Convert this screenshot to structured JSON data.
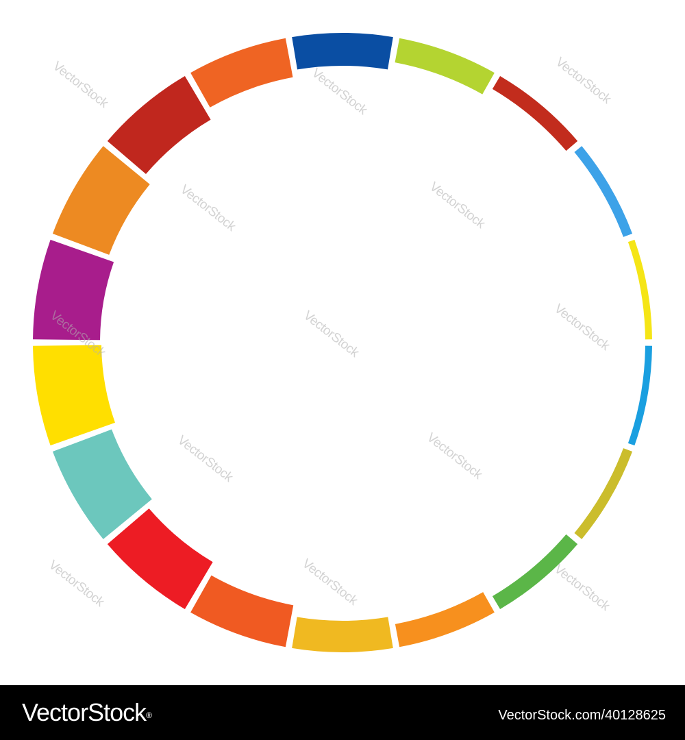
{
  "image": {
    "subject": "segmented-rainbow-ring",
    "background": "#ffffff",
    "segment_colors": [
      "#0a4ea3",
      "#b4d431",
      "#c22c1d",
      "#3da2e8",
      "#f5e516",
      "#1a9fe0",
      "#cbbd2c",
      "#5bb648",
      "#f7901e",
      "#f0b921",
      "#f05a22",
      "#ed1c24",
      "#6cc7bd",
      "#ffdf00",
      "#a81d8c",
      "#ed8a22",
      "#c0271e",
      "#ef6423"
    ]
  },
  "watermark": {
    "text": "VectorStock"
  },
  "footer": {
    "logo_text": "VectorStock",
    "logo_mark": "®",
    "image_id": "VectorStock.com/40128625",
    "background": "#000000"
  }
}
